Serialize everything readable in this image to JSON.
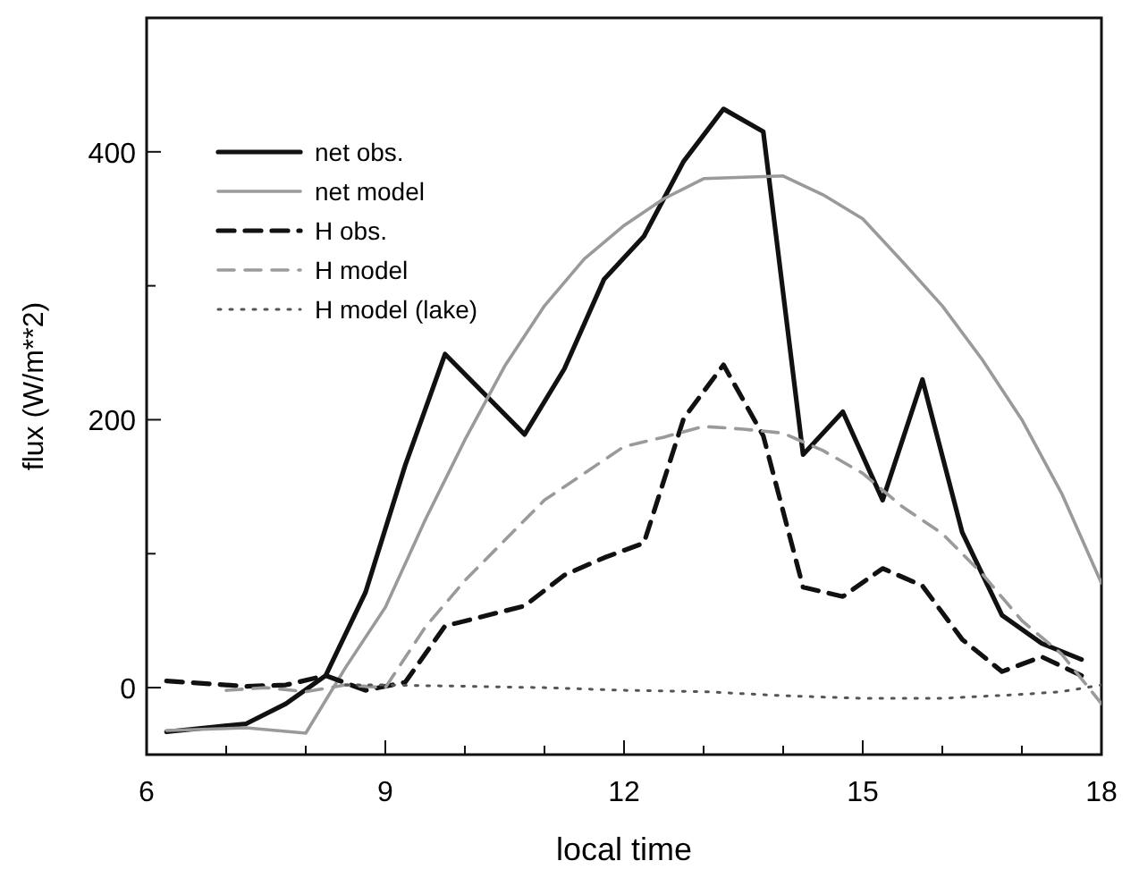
{
  "chart_data": {
    "type": "line",
    "xlabel": "local time",
    "ylabel": "flux (W/m**2)",
    "xlim": [
      6,
      18
    ],
    "ylim": [
      -50,
      500
    ],
    "xticks": [
      6,
      {
        "value": 7,
        "label": null
      },
      {
        "value": 8,
        "label": null
      },
      9,
      {
        "value": 10,
        "label": null
      },
      {
        "value": 11,
        "label": null
      },
      12,
      {
        "value": 13,
        "label": null
      },
      {
        "value": 14,
        "label": null
      },
      15,
      {
        "value": 16,
        "label": null
      },
      {
        "value": 17,
        "label": null
      },
      18
    ],
    "yticks": [
      0,
      {
        "value": 100,
        "label": null
      },
      200,
      {
        "value": 300,
        "label": null
      },
      400
    ],
    "legend": "top left",
    "grid": false,
    "marker": "none",
    "series": [
      {
        "name": "net obs.",
        "color": "#111111",
        "line_style": "solid",
        "x": [
          6.25,
          7.25,
          7.75,
          8.25,
          8.75,
          9.25,
          9.75,
          10.75,
          11.25,
          11.75,
          12.25,
          12.75,
          13.25,
          13.75,
          14.25,
          14.75,
          15.25,
          15.75,
          16.25,
          16.75,
          17.25,
          17.75
        ],
        "values": [
          -33,
          -27,
          -12,
          9,
          71,
          166,
          249,
          189,
          238,
          305,
          337,
          393,
          432,
          415,
          174,
          206,
          140,
          230,
          116,
          54,
          33,
          21
        ]
      },
      {
        "name": "net model",
        "color": "#9a9a9a",
        "line_style": "solid",
        "x": [
          6.25,
          7.25,
          8,
          8.5,
          9,
          9.5,
          10,
          10.5,
          11,
          11.5,
          12,
          12.5,
          13,
          13.5,
          14,
          14.5,
          15,
          15.5,
          16,
          16.5,
          17,
          17.5,
          18
        ],
        "values": [
          -32,
          -30,
          -34,
          15,
          60,
          125,
          185,
          240,
          285,
          320,
          345,
          365,
          380,
          381,
          382,
          368,
          350,
          318,
          285,
          245,
          200,
          145,
          78
        ]
      },
      {
        "name": "H obs.",
        "color": "#111111",
        "line_style": "dashed",
        "x": [
          6.25,
          7.25,
          7.75,
          8.25,
          8.75,
          9.25,
          9.75,
          10.75,
          11.25,
          11.75,
          12.25,
          12.75,
          13.25,
          13.75,
          14.25,
          14.75,
          15.25,
          15.75,
          16.25,
          16.75,
          17.25,
          17.75
        ],
        "values": [
          5,
          1,
          2,
          9,
          -2,
          4,
          46,
          61,
          84,
          97,
          108,
          201,
          241,
          188,
          75,
          68,
          89,
          76,
          36,
          12,
          23,
          9
        ]
      },
      {
        "name": "H model",
        "color": "#9a9a9a",
        "line_style": "dashed",
        "x": [
          7,
          7.5,
          8,
          8.5,
          9,
          9.5,
          10,
          10.5,
          11,
          11.5,
          12,
          12.5,
          13,
          13.5,
          14,
          14.5,
          15,
          15.5,
          16,
          16.5,
          17,
          17.5,
          18
        ],
        "values": [
          -2,
          0,
          -3,
          2,
          0,
          45,
          80,
          110,
          140,
          160,
          180,
          187,
          195,
          193,
          190,
          177,
          160,
          135,
          115,
          85,
          50,
          25,
          -12
        ]
      },
      {
        "name": "H model (lake)",
        "color": "#555555",
        "line_style": "dotted",
        "x": [
          8.5,
          9,
          10,
          11,
          12,
          13,
          14,
          15,
          16,
          17,
          17.5,
          18
        ],
        "values": [
          2,
          2,
          1,
          0,
          -2,
          -3,
          -6,
          -8,
          -8,
          -5,
          -3,
          2
        ]
      }
    ]
  }
}
